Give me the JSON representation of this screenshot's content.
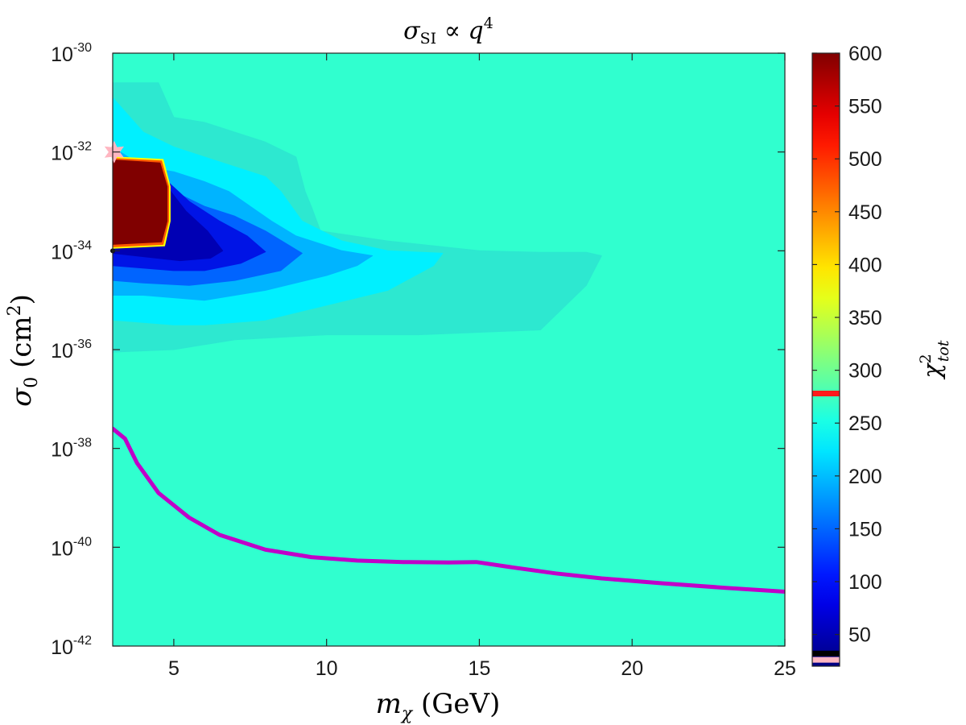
{
  "chart_data": {
    "type": "heatmap",
    "title": "σSI ∝ q4",
    "title_parts": {
      "sigma": "σ",
      "sub": "SI",
      "prop": " ∝ ",
      "q": "q",
      "exp": "4"
    },
    "xlabel": "mχ (GeV)",
    "xlabel_parts": {
      "m": "m",
      "sub": "χ",
      "unit": " (GeV)"
    },
    "ylabel": "σ0 (cm2)",
    "ylabel_parts": {
      "sigma": "σ",
      "sub": "0",
      "unit_open": " (cm",
      "unit_exp": "2",
      "unit_close": ")"
    },
    "xlim": [
      3,
      25
    ],
    "ylim": [
      -42,
      -30
    ],
    "yscale": "log",
    "x_ticks": [
      5,
      10,
      15,
      20,
      25
    ],
    "x_tick_labels": [
      "5",
      "10",
      "15",
      "20",
      "25"
    ],
    "y_ticks": [
      -42,
      -40,
      -38,
      -36,
      -34,
      -32,
      -30
    ],
    "y_tick_labels": [
      {
        "base": "10",
        "exp": "-42"
      },
      {
        "base": "10",
        "exp": "-40"
      },
      {
        "base": "10",
        "exp": "-38"
      },
      {
        "base": "10",
        "exp": "-36"
      },
      {
        "base": "10",
        "exp": "-34"
      },
      {
        "base": "10",
        "exp": "-32"
      },
      {
        "base": "10",
        "exp": "-30"
      }
    ],
    "background_value": 265,
    "contours": [
      {
        "level": 250,
        "color": "#2de8d0",
        "x": [
          3,
          3.8,
          4.5,
          5,
          6,
          7,
          8,
          9,
          9.3,
          9.5,
          9.8,
          12,
          15,
          17,
          18.5,
          19,
          18.5,
          17,
          13,
          10,
          7,
          5,
          3
        ],
        "y": [
          -30.6,
          -30.6,
          -30.6,
          -31.3,
          -31.4,
          -31.6,
          -31.8,
          -32.1,
          -32.8,
          -33.1,
          -33.6,
          -33.8,
          -34,
          -34.03,
          -34.03,
          -34.1,
          -34.7,
          -35.6,
          -35.7,
          -35.7,
          -35.8,
          -36,
          -36.05
        ]
      },
      {
        "level": 230,
        "color": "#00f0ff",
        "x": [
          3,
          4,
          5,
          6,
          7,
          8,
          8.5,
          9.2,
          10.5,
          12,
          13.8,
          13.5,
          12,
          10,
          8,
          6,
          5,
          3
        ],
        "y": [
          -30.9,
          -31.6,
          -31.9,
          -32.1,
          -32.3,
          -32.5,
          -32.8,
          -33.4,
          -33.8,
          -34,
          -34.05,
          -34.3,
          -34.8,
          -35.1,
          -35.4,
          -35.5,
          -35.5,
          -35.4
        ]
      },
      {
        "level": 200,
        "color": "#00b4ff",
        "x": [
          3,
          4,
          5,
          6,
          6.8,
          7.5,
          8.2,
          9,
          10.5,
          11.5,
          11,
          10,
          8,
          6,
          5,
          4,
          3
        ],
        "y": [
          -31.9,
          -32.3,
          -32.4,
          -32.6,
          -32.8,
          -33.1,
          -33.4,
          -33.7,
          -34,
          -34.1,
          -34.3,
          -34.5,
          -34.8,
          -35,
          -34.95,
          -34.9,
          -34.9
        ]
      },
      {
        "level": 150,
        "color": "#0064ff",
        "x": [
          3,
          4.2,
          5,
          6,
          7,
          8,
          9.2,
          8.5,
          7,
          5.5,
          4,
          3
        ],
        "y": [
          -32.3,
          -32.5,
          -32.8,
          -33.1,
          -33.3,
          -33.6,
          -34.05,
          -34.4,
          -34.6,
          -34.7,
          -34.65,
          -34.6
        ]
      },
      {
        "level": 100,
        "color": "#0014e6",
        "x": [
          3,
          4.8,
          5.5,
          6.5,
          7.4,
          8,
          7.2,
          6,
          5,
          3
        ],
        "y": [
          -32.5,
          -32.6,
          -33,
          -33.4,
          -33.7,
          -34.02,
          -34.25,
          -34.4,
          -34.4,
          -34.3
        ]
      },
      {
        "level": 70,
        "color": "#0000b4",
        "x": [
          3,
          4.9,
          5.4,
          6.1,
          6.6,
          6.2,
          5.2,
          3
        ],
        "y": [
          -32.8,
          -32.8,
          -33.2,
          -33.6,
          -34,
          -34.15,
          -34.2,
          -34.05
        ]
      },
      {
        "level": 300,
        "color": "#ffff00",
        "x": [
          3,
          4.65,
          4.88,
          4.88,
          4.7,
          3.0
        ],
        "y": [
          -32.1,
          -32.15,
          -32.7,
          -33.4,
          -33.9,
          -33.95
        ]
      },
      {
        "level": 450,
        "color": "#ff5a00",
        "x": [
          3,
          4.6,
          4.83,
          4.83,
          4.65,
          3.0
        ],
        "y": [
          -32.13,
          -32.18,
          -32.7,
          -33.4,
          -33.87,
          -33.92
        ]
      },
      {
        "level": 600,
        "color": "#800000",
        "x": [
          3,
          4.55,
          4.78,
          4.78,
          4.6,
          3.0
        ],
        "y": [
          -32.16,
          -32.22,
          -32.7,
          -33.4,
          -33.82,
          -33.87
        ]
      }
    ],
    "curve": {
      "color": "#c000c8",
      "x": [
        3,
        3.4,
        3.8,
        4.5,
        5.5,
        6.5,
        8,
        9.5,
        11,
        12.5,
        14,
        14.9,
        16,
        17.5,
        19,
        21,
        23,
        25
      ],
      "y": [
        -37.6,
        -37.8,
        -38.3,
        -38.9,
        -39.4,
        -39.75,
        -40.05,
        -40.2,
        -40.27,
        -40.3,
        -40.31,
        -40.3,
        -40.4,
        -40.53,
        -40.63,
        -40.73,
        -40.82,
        -40.9
      ]
    },
    "markers": [
      {
        "shape": "star",
        "color": "#ffb6c1",
        "x": 3.05,
        "y": -32
      },
      {
        "shape": "dot",
        "color": "#111111",
        "x": 3.0,
        "y": -34
      }
    ],
    "colorbar": {
      "label": "χ2tot",
      "label_parts": {
        "chi": "χ",
        "exp": "2",
        "sub": "tot"
      },
      "range": [
        20,
        600
      ],
      "ticks": [
        50,
        100,
        150,
        200,
        250,
        300,
        350,
        400,
        450,
        500,
        550,
        600
      ],
      "tick_labels": [
        "50",
        "100",
        "150",
        "200",
        "250",
        "300",
        "350",
        "400",
        "450",
        "500",
        "550",
        "600"
      ],
      "colormap": "jet",
      "lines": [
        {
          "value": 278,
          "color": "#ff1a1a"
        },
        {
          "value": 32,
          "color": "#000000"
        },
        {
          "value": 26,
          "color": "#ffb6c1"
        }
      ]
    }
  }
}
